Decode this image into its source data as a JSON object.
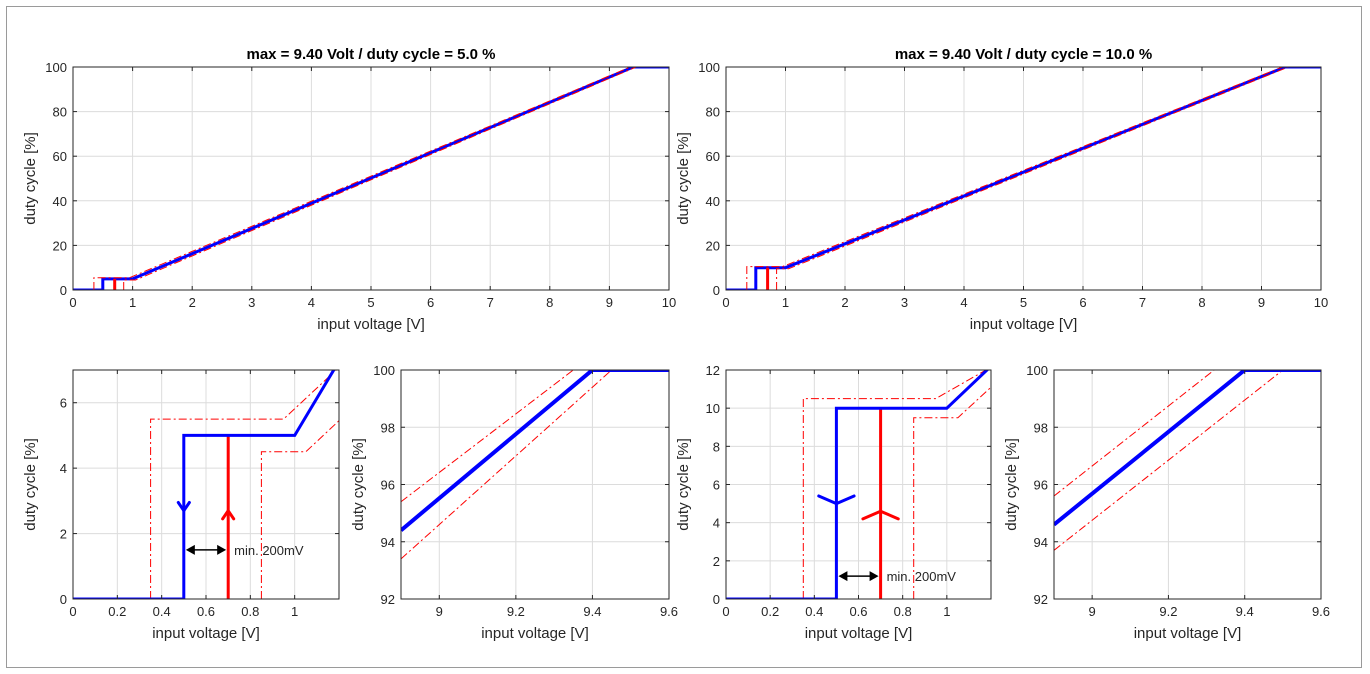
{
  "colors": {
    "blue": "#0000ff",
    "red": "#ff0000",
    "arrow": "#000000",
    "grid": "#dcdcdc"
  },
  "chart_data": [
    {
      "id": "p1",
      "type": "line",
      "title": "max = 9.40 Volt / duty cycle = 5.0 %",
      "xlabel": "input voltage [V]",
      "ylabel": "duty cycle [%]",
      "xlim": [
        0,
        10
      ],
      "ylim": [
        0,
        100
      ],
      "xticks": [
        0,
        1,
        2,
        3,
        4,
        5,
        6,
        7,
        8,
        9,
        10
      ],
      "xtick_labels": [
        "0",
        "1",
        "2",
        "3",
        "4",
        "5",
        "6",
        "7",
        "8",
        "9",
        "10"
      ],
      "yticks": [
        0,
        20,
        40,
        60,
        80,
        100
      ],
      "ytick_labels": [
        "0",
        "20",
        "40",
        "60",
        "80",
        "100"
      ],
      "grid": true,
      "series": [
        {
          "color": "blue",
          "style": "solid",
          "width": 3,
          "points": [
            [
              0,
              0
            ],
            [
              0.5,
              0
            ],
            [
              0.5,
              5
            ],
            [
              1.0,
              5
            ],
            [
              9.4,
              100
            ],
            [
              10,
              100
            ]
          ]
        },
        {
          "color": "red",
          "style": "solid",
          "width": 3,
          "points": [
            [
              0.7,
              0
            ],
            [
              0.7,
              5
            ]
          ]
        },
        {
          "color": "red",
          "style": "dashdot",
          "width": 1,
          "points": [
            [
              0.35,
              0
            ],
            [
              0.35,
              5.5
            ],
            [
              0.95,
              5.5
            ],
            [
              9.35,
              100
            ]
          ]
        },
        {
          "color": "red",
          "style": "dashdot",
          "width": 1,
          "points": [
            [
              0.85,
              0
            ],
            [
              0.85,
              4.5
            ],
            [
              1.05,
              4.5
            ],
            [
              9.45,
              100
            ],
            [
              10,
              100
            ]
          ]
        }
      ]
    },
    {
      "id": "p2",
      "type": "line",
      "title": "max = 9.40 Volt / duty cycle = 10.0 %",
      "xlabel": "input voltage [V]",
      "ylabel": "duty cycle [%]",
      "xlim": [
        0,
        10
      ],
      "ylim": [
        0,
        100
      ],
      "xticks": [
        0,
        1,
        2,
        3,
        4,
        5,
        6,
        7,
        8,
        9,
        10
      ],
      "xtick_labels": [
        "0",
        "1",
        "2",
        "3",
        "4",
        "5",
        "6",
        "7",
        "8",
        "9",
        "10"
      ],
      "yticks": [
        0,
        20,
        40,
        60,
        80,
        100
      ],
      "ytick_labels": [
        "0",
        "20",
        "40",
        "60",
        "80",
        "100"
      ],
      "grid": true,
      "series": [
        {
          "color": "blue",
          "style": "solid",
          "width": 3,
          "points": [
            [
              0,
              0
            ],
            [
              0.5,
              0
            ],
            [
              0.5,
              10
            ],
            [
              1.0,
              10
            ],
            [
              9.4,
              100
            ],
            [
              10,
              100
            ]
          ]
        },
        {
          "color": "red",
          "style": "solid",
          "width": 3,
          "points": [
            [
              0.7,
              0
            ],
            [
              0.7,
              10
            ]
          ]
        },
        {
          "color": "red",
          "style": "dashdot",
          "width": 1,
          "points": [
            [
              0.35,
              0
            ],
            [
              0.35,
              10.5
            ],
            [
              0.95,
              10.5
            ],
            [
              9.35,
              100
            ]
          ]
        },
        {
          "color": "red",
          "style": "dashdot",
          "width": 1,
          "points": [
            [
              0.85,
              0
            ],
            [
              0.85,
              9.5
            ],
            [
              1.05,
              9.5
            ],
            [
              9.45,
              100
            ],
            [
              10,
              100
            ]
          ]
        }
      ]
    },
    {
      "id": "p3",
      "type": "line",
      "title": "",
      "xlabel": "input voltage [V]",
      "ylabel": "duty cycle [%]",
      "xlim": [
        0,
        1.2
      ],
      "ylim": [
        0,
        7
      ],
      "xticks": [
        0,
        0.2,
        0.4,
        0.6,
        0.8,
        1
      ],
      "xtick_labels": [
        "0",
        "0.2",
        "0.4",
        "0.6",
        "0.8",
        "1"
      ],
      "yticks": [
        0,
        2,
        4,
        6
      ],
      "ytick_labels": [
        "0",
        "2",
        "4",
        "6"
      ],
      "grid": true,
      "annotation": "min. 200mV",
      "arrow_y": 1.5,
      "arrow_x": [
        0.5,
        0.7
      ],
      "series": [
        {
          "color": "red",
          "style": "dashdot",
          "width": 1,
          "points": [
            [
              0.35,
              0
            ],
            [
              0.35,
              5.5
            ],
            [
              0.95,
              5.5
            ],
            [
              1.2,
              7.08
            ]
          ]
        },
        {
          "color": "red",
          "style": "dashdot",
          "width": 1,
          "points": [
            [
              0.85,
              0
            ],
            [
              0.85,
              4.5
            ],
            [
              1.05,
              4.5
            ],
            [
              1.2,
              5.45
            ]
          ]
        },
        {
          "color": "red",
          "style": "solid",
          "width": 3,
          "points": [
            [
              0.7,
              0
            ],
            [
              0.7,
              5
            ]
          ]
        },
        {
          "color": "blue",
          "style": "solid",
          "width": 3,
          "points": [
            [
              0,
              0
            ],
            [
              0.5,
              0
            ],
            [
              0.5,
              5
            ],
            [
              1.0,
              5
            ],
            [
              1.2,
              7.27
            ]
          ]
        }
      ],
      "dir_arrows": [
        {
          "color": "blue",
          "x": 0.5,
          "y": 2.7,
          "dir": "down",
          "dx": 0.025,
          "dy": 0.25
        },
        {
          "color": "red",
          "x": 0.7,
          "y": 2.7,
          "dir": "up",
          "dx": 0.025,
          "dy": 0.25
        }
      ]
    },
    {
      "id": "p4",
      "type": "line",
      "title": "",
      "xlabel": "input voltage [V]",
      "ylabel": "duty cycle [%]",
      "xlim": [
        8.9,
        9.6
      ],
      "ylim": [
        92,
        100
      ],
      "xticks": [
        9,
        9.2,
        9.4,
        9.6
      ],
      "xtick_labels": [
        "9",
        "9.2",
        "9.4",
        "9.6"
      ],
      "yticks": [
        92,
        94,
        96,
        98,
        100
      ],
      "ytick_labels": [
        "92",
        "94",
        "96",
        "98",
        "100"
      ],
      "grid": true,
      "series": [
        {
          "color": "red",
          "style": "dashdot",
          "width": 1,
          "points": [
            [
              8.9,
              95.4
            ],
            [
              9.35,
              100
            ]
          ]
        },
        {
          "color": "red",
          "style": "dashdot",
          "width": 1,
          "points": [
            [
              8.9,
              93.4
            ],
            [
              9.45,
              100
            ],
            [
              9.6,
              100
            ]
          ]
        },
        {
          "color": "blue",
          "style": "solid",
          "width": 4,
          "points": [
            [
              8.9,
              94.4
            ],
            [
              9.4,
              100
            ],
            [
              9.6,
              100
            ]
          ]
        }
      ]
    },
    {
      "id": "p5",
      "type": "line",
      "title": "",
      "xlabel": "input voltage [V]",
      "ylabel": "duty cycle [%]",
      "xlim": [
        0,
        1.2
      ],
      "ylim": [
        0,
        12
      ],
      "xticks": [
        0,
        0.2,
        0.4,
        0.6,
        0.8,
        1
      ],
      "xtick_labels": [
        "0",
        "0.2",
        "0.4",
        "0.6",
        "0.8",
        "1"
      ],
      "yticks": [
        0,
        2,
        4,
        6,
        8,
        10,
        12
      ],
      "ytick_labels": [
        "0",
        "2",
        "4",
        "6",
        "8",
        "10",
        "12"
      ],
      "grid": true,
      "annotation": "min. 200mV",
      "arrow_y": 1.2,
      "arrow_x": [
        0.5,
        0.7
      ],
      "series": [
        {
          "color": "red",
          "style": "dashdot",
          "width": 1,
          "points": [
            [
              0.35,
              0
            ],
            [
              0.35,
              10.5
            ],
            [
              0.95,
              10.5
            ],
            [
              1.2,
              12.15
            ]
          ]
        },
        {
          "color": "red",
          "style": "dashdot",
          "width": 1,
          "points": [
            [
              0.85,
              0
            ],
            [
              0.85,
              9.5
            ],
            [
              1.05,
              9.5
            ],
            [
              1.2,
              11.1
            ]
          ]
        },
        {
          "color": "red",
          "style": "solid",
          "width": 3,
          "points": [
            [
              0.7,
              0
            ],
            [
              0.7,
              10
            ]
          ]
        },
        {
          "color": "blue",
          "style": "solid",
          "width": 3,
          "points": [
            [
              0,
              0
            ],
            [
              0.5,
              0
            ],
            [
              0.5,
              10
            ],
            [
              1.0,
              10
            ],
            [
              1.2,
              12.2
            ]
          ]
        }
      ],
      "dir_arrows": [
        {
          "color": "blue",
          "x": 0.5,
          "y": 5.0,
          "dir": "down",
          "dx": 0.08,
          "dy": 0.4
        },
        {
          "color": "red",
          "x": 0.7,
          "y": 4.6,
          "dir": "up",
          "dx": 0.08,
          "dy": 0.4
        }
      ]
    },
    {
      "id": "p6",
      "type": "line",
      "title": "",
      "xlabel": "input voltage [V]",
      "ylabel": "duty cycle [%]",
      "xlim": [
        8.9,
        9.6
      ],
      "ylim": [
        92,
        100
      ],
      "xticks": [
        9,
        9.2,
        9.4,
        9.6
      ],
      "xtick_labels": [
        "9",
        "9.2",
        "9.4",
        "9.6"
      ],
      "yticks": [
        92,
        94,
        96,
        98,
        100
      ],
      "ytick_labels": [
        "92",
        "94",
        "96",
        "98",
        "100"
      ],
      "grid": true,
      "series": [
        {
          "color": "red",
          "style": "dashdot",
          "width": 1,
          "points": [
            [
              8.9,
              95.6
            ],
            [
              9.32,
              100
            ]
          ]
        },
        {
          "color": "red",
          "style": "dashdot",
          "width": 1,
          "points": [
            [
              8.9,
              93.7
            ],
            [
              9.5,
              100
            ],
            [
              9.6,
              100
            ]
          ]
        },
        {
          "color": "blue",
          "style": "solid",
          "width": 4,
          "points": [
            [
              8.9,
              94.6
            ],
            [
              9.4,
              100
            ],
            [
              9.6,
              100
            ]
          ]
        }
      ]
    }
  ]
}
